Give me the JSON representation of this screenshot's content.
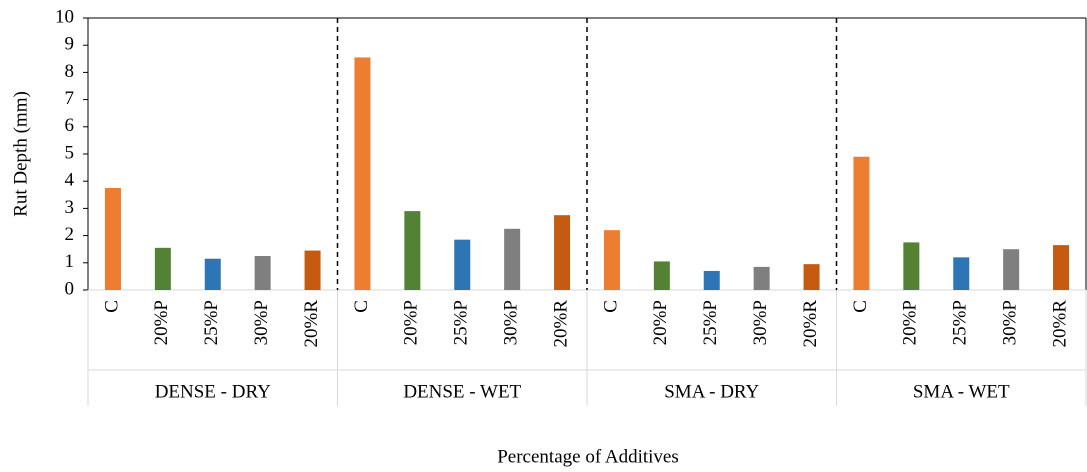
{
  "chart_data": {
    "type": "bar",
    "y_label": "Rut Depth (mm)",
    "x_label": "Percentage of Additives",
    "groups": [
      "DENSE - DRY",
      "DENSE - WET",
      "SMA - DRY",
      "SMA - WET"
    ],
    "categories": [
      "C",
      "20%P",
      "25%P",
      "30%P",
      "20%R",
      "C",
      "20%P",
      "25%P",
      "30%P",
      "20%R",
      "C",
      "20%P",
      "25%P",
      "30%P",
      "20%R",
      "C",
      "20%P",
      "25%P",
      "30%P",
      "20%R"
    ],
    "values": [
      3.75,
      1.55,
      1.15,
      1.25,
      1.45,
      8.55,
      2.9,
      1.85,
      2.25,
      2.75,
      2.2,
      1.05,
      0.7,
      0.85,
      0.95,
      4.9,
      1.75,
      1.2,
      1.5,
      1.65
    ],
    "colors": [
      "#ed7d31",
      "#548235",
      "#2e75b6",
      "#7f7f7f",
      "#c55a11"
    ],
    "ylim": [
      0,
      10
    ],
    "yticks": [
      0,
      1,
      2,
      3,
      4,
      5,
      6,
      7,
      8,
      9,
      10
    ]
  }
}
